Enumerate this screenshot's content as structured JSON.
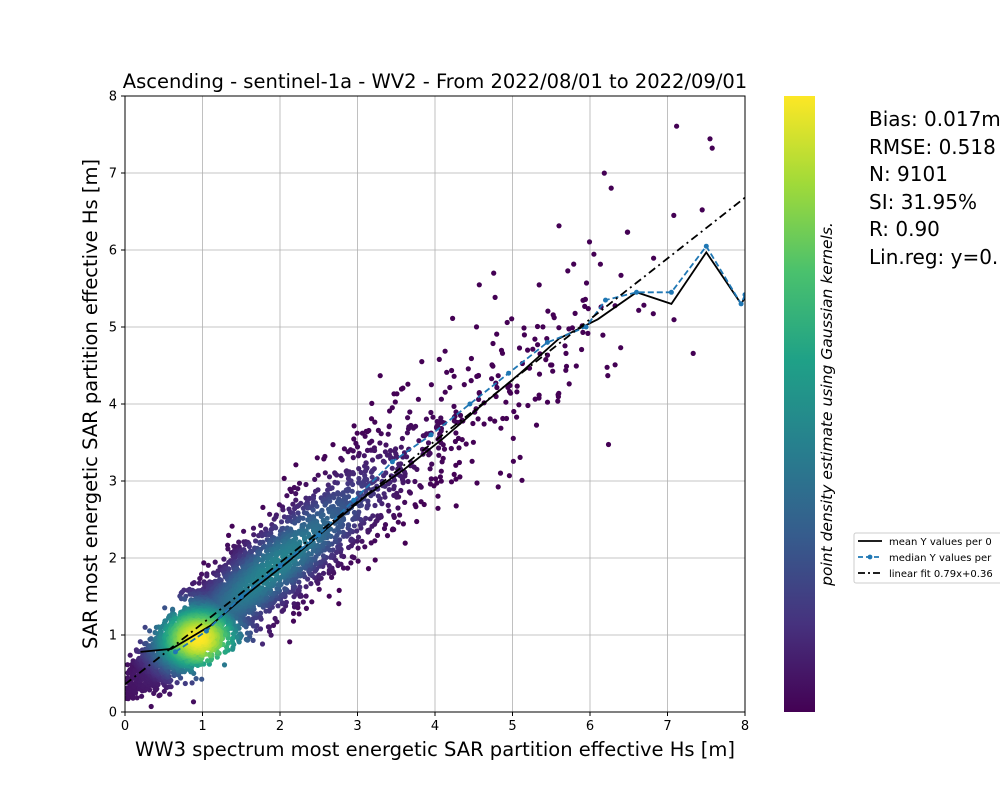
{
  "chart_data": {
    "type": "scatter",
    "title": "Ascending - sentinel-1a - WV2 - From 2022/08/01 to 2022/09/01",
    "xlabel": "WW3 spectrum most energetic SAR partition effective Hs [m]",
    "ylabel": "SAR most energetic SAR partition effective Hs [m]",
    "xlim": [
      0,
      8
    ],
    "ylim": [
      0,
      8
    ],
    "xticks": [
      "0",
      "1",
      "2",
      "3",
      "4",
      "5",
      "6",
      "7",
      "8"
    ],
    "yticks": [
      "0",
      "1",
      "2",
      "3",
      "4",
      "5",
      "6",
      "7",
      "8"
    ],
    "grid": true,
    "colorbar": {
      "label": "point density estimate using Gaussian kernels.",
      "colormap": "viridis",
      "colors": [
        "#440154",
        "#46327e",
        "#365c8d",
        "#277f8e",
        "#1fa187",
        "#4ac16d",
        "#a0da39",
        "#fde725"
      ]
    },
    "stats": [
      "Bias: 0.017m",
      "RMSE: 0.518",
      "N: 9101",
      "SI: 31.95%",
      "R: 0.90",
      "Lin.reg: y=0."
    ],
    "legend": {
      "placement": "right",
      "entries": [
        "mean Y values per 0",
        "median Y values per",
        "linear fit 0.79x+0.36"
      ]
    },
    "series": [
      {
        "name": "mean Y values per 0",
        "style": "solid",
        "color": "#000000",
        "x": [
          0.2,
          0.6,
          1.1,
          1.6,
          2.1,
          2.6,
          3.1,
          3.6,
          4.1,
          4.6,
          5.1,
          5.6,
          6.1,
          6.6,
          7.05,
          7.5,
          7.95,
          8.0
        ],
        "y": [
          0.78,
          0.82,
          1.12,
          1.55,
          1.95,
          2.38,
          2.8,
          3.15,
          3.55,
          3.98,
          4.4,
          4.85,
          5.1,
          5.45,
          5.3,
          5.97,
          5.3,
          5.38
        ]
      },
      {
        "name": "median Y values per",
        "style": "dashed",
        "marker": "o",
        "color": "#1f77b4",
        "x": [
          0.65,
          1.05,
          1.5,
          2.0,
          2.5,
          2.95,
          3.45,
          3.95,
          4.45,
          4.95,
          5.45,
          5.95,
          6.2,
          6.6,
          7.05,
          7.5,
          7.95,
          8.0
        ],
        "y": [
          0.78,
          1.05,
          1.5,
          1.9,
          2.3,
          2.75,
          3.25,
          3.6,
          4.0,
          4.4,
          4.8,
          5.0,
          5.35,
          5.45,
          5.45,
          6.05,
          5.3,
          5.42
        ]
      },
      {
        "name": "linear fit 0.79x+0.36",
        "style": "dashdot",
        "color": "#000000",
        "x": [
          0,
          8
        ],
        "y": [
          0.36,
          6.68
        ]
      }
    ]
  }
}
